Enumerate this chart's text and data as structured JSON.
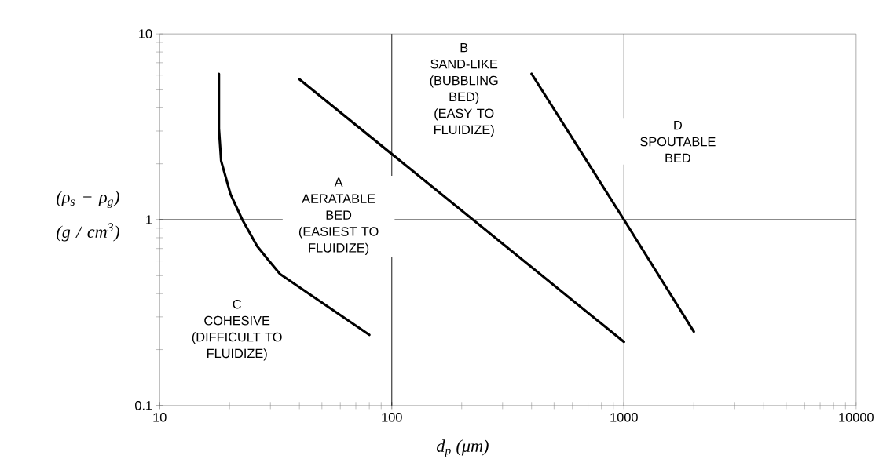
{
  "chart_data": {
    "type": "line",
    "xlabel": "d$_{p}$   (μm)",
    "ylabel": "(ρ$_{s}$ − ρ$_{g}$)\n(g / cm$^{3}$)",
    "log": "xy",
    "xlim": [
      10,
      10000
    ],
    "ylim": [
      0.1,
      10
    ],
    "xticks": [
      10,
      100,
      1000,
      10000
    ],
    "yticks": [
      0.1,
      1,
      10
    ],
    "series": [
      {
        "color": "#000000",
        "x": [
          18,
          18,
          18.4,
          20.2,
          22.7,
          26.3,
          29.6,
          33,
          80
        ],
        "values": [
          6.1,
          3.1,
          2.07,
          1.37,
          1,
          0.72,
          0.6,
          0.51,
          0.24
        ]
      },
      {
        "color": "#000000",
        "x": [
          40,
          1000
        ],
        "values": [
          5.7,
          0.22
        ]
      },
      {
        "color": "#000000",
        "x": [
          400,
          1000,
          2000
        ],
        "values": [
          6.1,
          1,
          0.25
        ]
      }
    ],
    "ref_lines": [
      {
        "axis": "x",
        "value": 100
      },
      {
        "axis": "x",
        "value": 1000
      },
      {
        "axis": "y",
        "value": 1
      }
    ],
    "annotations": [
      "A\nAERATABLE\nBED\n(EASIEST TO\nFLUIDIZE)",
      "B\nSAND-LIKE\n(BUBBLING\nBED)\n(EASY TO\nFLUIDIZE)",
      "C\nCOHESIVE\n(DIFFICULT TO\nFLUIDIZE)",
      "D\nSPOUTABLE\nBED"
    ]
  }
}
